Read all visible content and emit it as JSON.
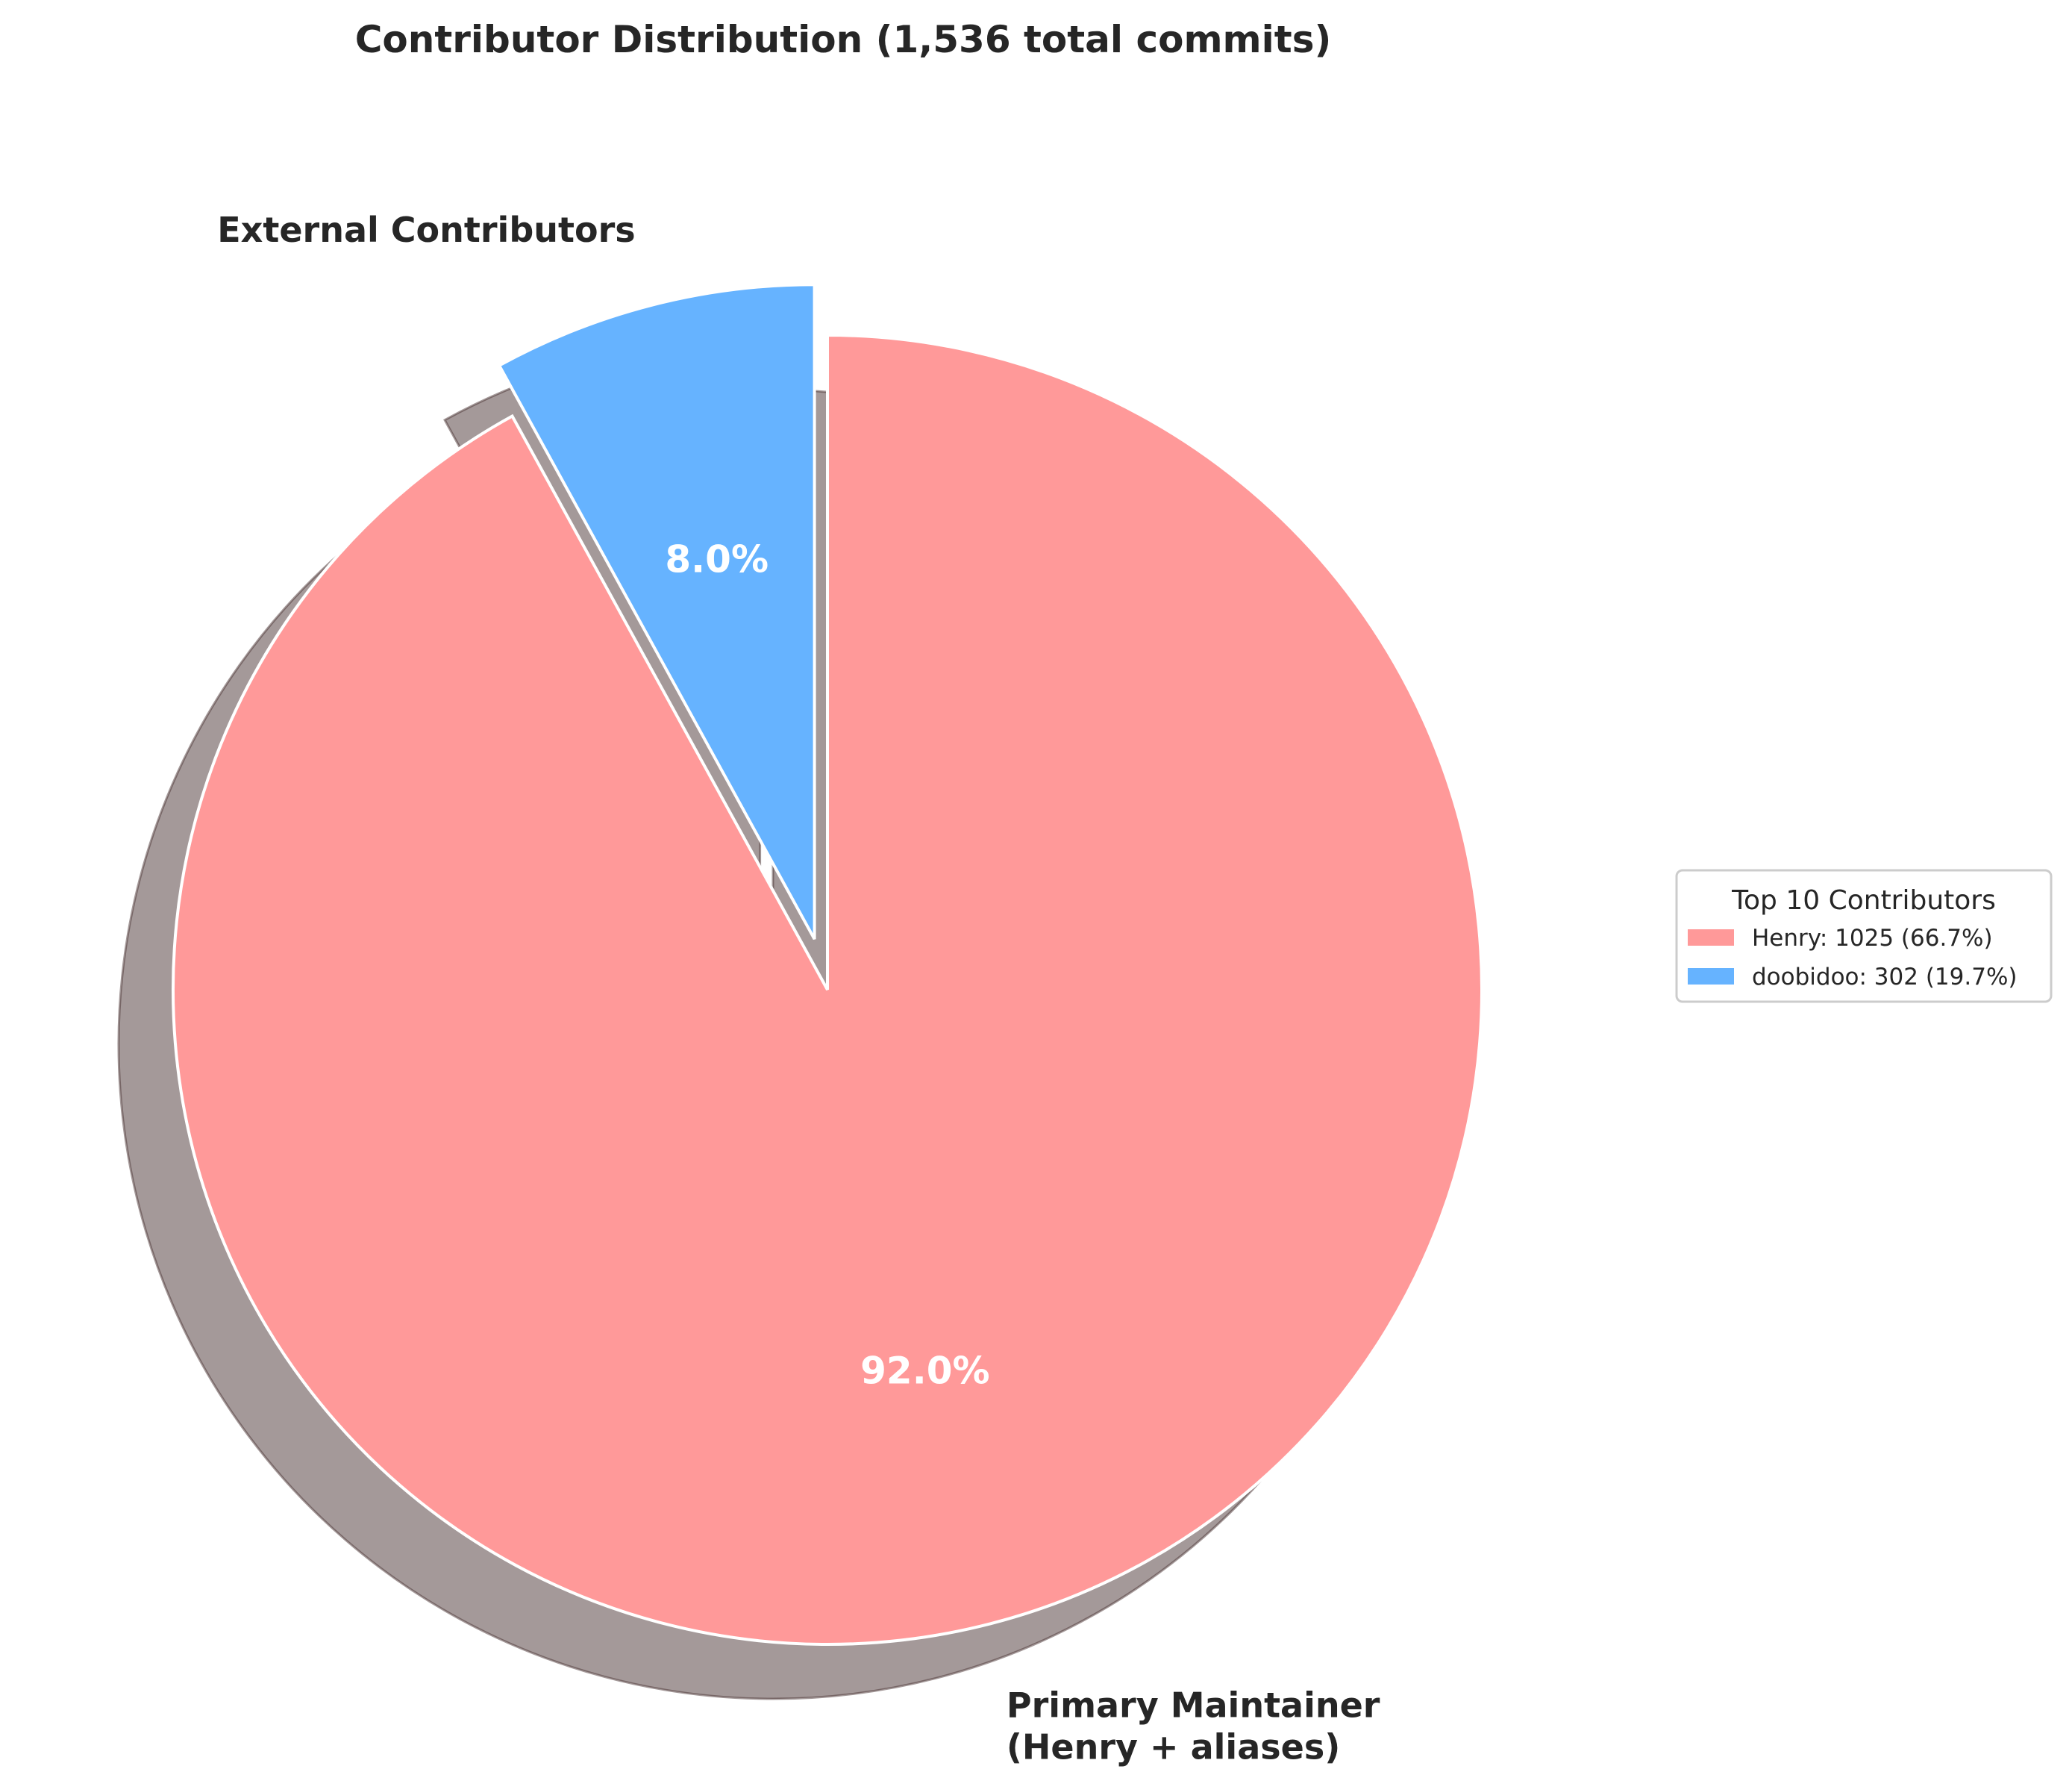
{
  "chart_data": {
    "type": "pie",
    "title": "Contributor Distribution (1,536 total commits)",
    "slices": [
      {
        "label_lines": [
          "Primary Maintainer",
          "(Henry + aliases)"
        ],
        "value": 92.0,
        "pct_label": "92.0%",
        "color": "#ff9999",
        "exploded": false
      },
      {
        "label_lines": [
          "External Contributors"
        ],
        "value": 8.0,
        "pct_label": "8.0%",
        "color": "#66b3ff",
        "exploded": true
      }
    ],
    "start_angle": "top",
    "direction": "clockwise",
    "shadow": true,
    "legend": {
      "title": "Top 10 Contributors",
      "placement": "center-right",
      "entries": [
        {
          "label": "Henry: 1025 (66.7%)",
          "color": "#ff9999"
        },
        {
          "label": "doobidoo: 302 (19.7%)",
          "color": "#66b3ff"
        }
      ]
    }
  }
}
